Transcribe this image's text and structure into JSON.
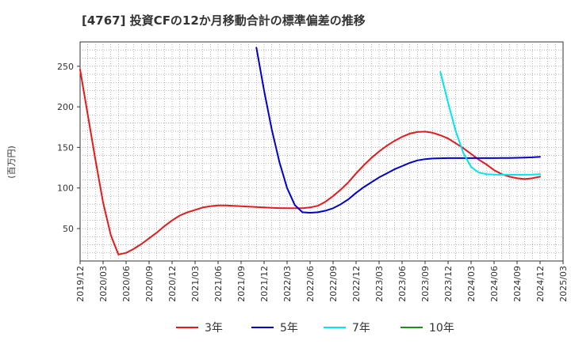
{
  "chart_data": {
    "type": "line",
    "title": "[4767]  投資CFの12か月移動合計の標準偏差の推移",
    "ylabel": "(百万円)",
    "xlabel": "",
    "ylim": [
      10,
      280
    ],
    "xlim": [
      "2019-12",
      "2025-03"
    ],
    "y_ticks": [
      50,
      100,
      150,
      200,
      250
    ],
    "x_ticks": [
      "2019/12",
      "2020/03",
      "2020/06",
      "2020/09",
      "2020/12",
      "2021/03",
      "2021/06",
      "2021/09",
      "2021/12",
      "2022/03",
      "2022/06",
      "2022/09",
      "2022/12",
      "2023/03",
      "2023/06",
      "2023/09",
      "2023/12",
      "2024/03",
      "2024/06",
      "2024/09",
      "2024/12",
      "2025/03"
    ],
    "grid": true,
    "legend_position": "bottom",
    "series": [
      {
        "name": "3年",
        "color": "#e41a1c",
        "points": [
          [
            "2019-12",
            246
          ],
          [
            "2020-01",
            190
          ],
          [
            "2020-02",
            135
          ],
          [
            "2020-03",
            82
          ],
          [
            "2020-04",
            42
          ],
          [
            "2020-05",
            18
          ],
          [
            "2020-06",
            20
          ],
          [
            "2020-07",
            25
          ],
          [
            "2020-08",
            31
          ],
          [
            "2020-09",
            38
          ],
          [
            "2020-10",
            45
          ],
          [
            "2020-11",
            53
          ],
          [
            "2020-12",
            60
          ],
          [
            "2021-01",
            66
          ],
          [
            "2021-02",
            70
          ],
          [
            "2021-03",
            73
          ],
          [
            "2021-04",
            76
          ],
          [
            "2021-05",
            77.5
          ],
          [
            "2021-06",
            78.5
          ],
          [
            "2021-07",
            78.5
          ],
          [
            "2021-08",
            78
          ],
          [
            "2021-09",
            77.5
          ],
          [
            "2021-10",
            77
          ],
          [
            "2021-11",
            76.5
          ],
          [
            "2021-12",
            76
          ],
          [
            "2022-01",
            75.5
          ],
          [
            "2022-02",
            75.2
          ],
          [
            "2022-03",
            75
          ],
          [
            "2022-04",
            75
          ],
          [
            "2022-05",
            75
          ],
          [
            "2022-06",
            76
          ],
          [
            "2022-07",
            78
          ],
          [
            "2022-08",
            83
          ],
          [
            "2022-09",
            90
          ],
          [
            "2022-10",
            98
          ],
          [
            "2022-11",
            107
          ],
          [
            "2022-12",
            118
          ],
          [
            "2023-01",
            128
          ],
          [
            "2023-02",
            137
          ],
          [
            "2023-03",
            145
          ],
          [
            "2023-04",
            152
          ],
          [
            "2023-05",
            158
          ],
          [
            "2023-06",
            163
          ],
          [
            "2023-07",
            167
          ],
          [
            "2023-08",
            169
          ],
          [
            "2023-09",
            169.5
          ],
          [
            "2023-10",
            168
          ],
          [
            "2023-11",
            165
          ],
          [
            "2023-12",
            161
          ],
          [
            "2024-01",
            155
          ],
          [
            "2024-02",
            149
          ],
          [
            "2024-03",
            142
          ],
          [
            "2024-04",
            135
          ],
          [
            "2024-05",
            129
          ],
          [
            "2024-06",
            122
          ],
          [
            "2024-07",
            117
          ],
          [
            "2024-08",
            114
          ],
          [
            "2024-09",
            112
          ],
          [
            "2024-10",
            111
          ],
          [
            "2024-11",
            112
          ],
          [
            "2024-12",
            114
          ]
        ]
      },
      {
        "name": "5年",
        "color": "#0000cc",
        "points": [
          [
            "2021-11",
            273
          ],
          [
            "2021-12",
            220
          ],
          [
            "2022-01",
            172
          ],
          [
            "2022-02",
            132
          ],
          [
            "2022-03",
            100
          ],
          [
            "2022-04",
            79
          ],
          [
            "2022-05",
            70
          ],
          [
            "2022-06",
            69.5
          ],
          [
            "2022-07",
            70
          ],
          [
            "2022-08",
            72
          ],
          [
            "2022-09",
            75
          ],
          [
            "2022-10",
            80
          ],
          [
            "2022-11",
            86
          ],
          [
            "2022-12",
            94
          ],
          [
            "2023-01",
            101
          ],
          [
            "2023-02",
            107
          ],
          [
            "2023-03",
            113
          ],
          [
            "2023-04",
            118
          ],
          [
            "2023-05",
            123
          ],
          [
            "2023-06",
            127
          ],
          [
            "2023-07",
            131
          ],
          [
            "2023-08",
            134
          ],
          [
            "2023-09",
            135.5
          ],
          [
            "2023-10",
            136.3
          ],
          [
            "2023-11",
            136.6
          ],
          [
            "2023-12",
            136.8
          ],
          [
            "2024-01",
            136.8
          ],
          [
            "2024-02",
            136.8
          ],
          [
            "2024-03",
            136.8
          ],
          [
            "2024-04",
            136.8
          ],
          [
            "2024-05",
            136.8
          ],
          [
            "2024-06",
            136.8
          ],
          [
            "2024-07",
            136.9
          ],
          [
            "2024-08",
            137
          ],
          [
            "2024-09",
            137.2
          ],
          [
            "2024-10",
            137.5
          ],
          [
            "2024-11",
            137.8
          ],
          [
            "2024-12",
            138.5
          ]
        ]
      },
      {
        "name": "7年",
        "color": "#00e5ee",
        "points": [
          [
            "2023-11",
            243
          ],
          [
            "2023-12",
            205
          ],
          [
            "2024-01",
            170
          ],
          [
            "2024-02",
            143
          ],
          [
            "2024-03",
            126
          ],
          [
            "2024-04",
            119
          ],
          [
            "2024-05",
            117
          ],
          [
            "2024-06",
            116.5
          ],
          [
            "2024-07",
            116.3
          ],
          [
            "2024-08",
            116.2
          ],
          [
            "2024-09",
            116.2
          ],
          [
            "2024-10",
            116.3
          ],
          [
            "2024-11",
            116.5
          ],
          [
            "2024-12",
            117
          ]
        ]
      },
      {
        "name": "10年",
        "color": "#228b22",
        "points": []
      }
    ]
  }
}
